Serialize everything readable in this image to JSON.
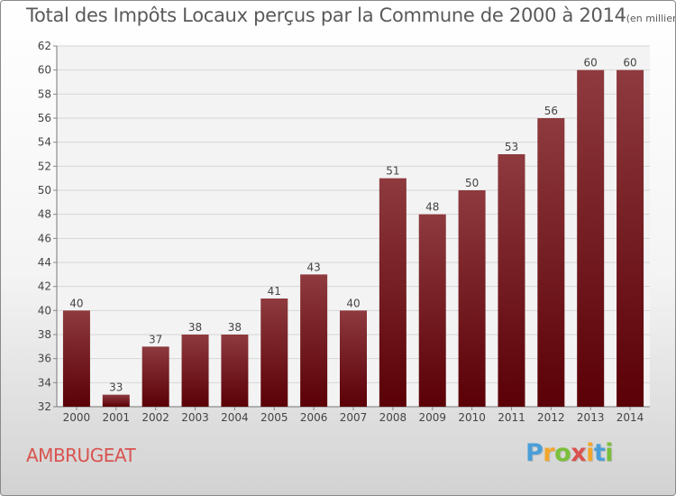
{
  "chart_data": {
    "type": "bar",
    "title": "Total des Impôts Locaux perçus par la Commune de 2000 à 2014",
    "unit_label": "(en milliers d'€)",
    "categories": [
      "2000",
      "2001",
      "2002",
      "2003",
      "2004",
      "2005",
      "2006",
      "2007",
      "2008",
      "2009",
      "2010",
      "2011",
      "2012",
      "2013",
      "2014"
    ],
    "values": [
      40,
      33,
      37,
      38,
      38,
      41,
      43,
      40,
      51,
      48,
      50,
      53,
      56,
      60,
      60
    ],
    "ylim": [
      32,
      62
    ],
    "yticks": [
      32,
      34,
      36,
      38,
      40,
      42,
      44,
      46,
      48,
      50,
      52,
      54,
      56,
      58,
      60,
      62
    ],
    "xlabel": "",
    "ylabel": "",
    "grid": true,
    "bar_color_top": "#8e3a3e",
    "bar_color_bottom": "#5a0006"
  },
  "footer": {
    "commune": "AMBRUGEAT",
    "logo_letters": [
      "P",
      "r",
      "o",
      "x",
      "i",
      "t",
      "i"
    ],
    "logo_colors": [
      "#4a9fd8",
      "#f2a62c",
      "#7bbf3a",
      "#d9534f",
      "#f2a62c",
      "#4a9fd8",
      "#7bbf3a"
    ]
  }
}
